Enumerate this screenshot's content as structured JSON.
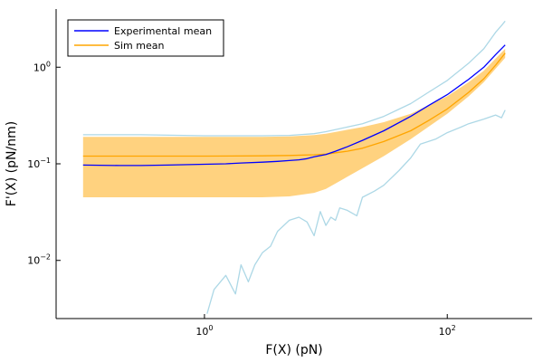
{
  "chart_data": {
    "type": "line",
    "xlabel": "F(X) (pN)",
    "ylabel": "F'(X) (pN/nm)",
    "xscale": "log10",
    "yscale": "log10",
    "xlim": [
      0.06,
      500
    ],
    "ylim": [
      0.0025,
      4.0
    ],
    "grid": false,
    "legend_position": "top-left",
    "x_ticks": [
      {
        "value": 1,
        "base": "10",
        "exp": "0"
      },
      {
        "value": 100,
        "base": "10",
        "exp": "2"
      }
    ],
    "y_ticks": [
      {
        "value": 0.01,
        "base": "10",
        "exp": "−2"
      },
      {
        "value": 0.1,
        "base": "10",
        "exp": "−1"
      },
      {
        "value": 1,
        "base": "10",
        "exp": "0"
      }
    ],
    "band": {
      "color": "#FFA500",
      "opacity": 0.5,
      "x": [
        0.1,
        0.3,
        1,
        3,
        5,
        8,
        10,
        20,
        30,
        50,
        100,
        150,
        200,
        300
      ],
      "upper": [
        0.19,
        0.19,
        0.19,
        0.19,
        0.192,
        0.198,
        0.205,
        0.24,
        0.27,
        0.33,
        0.5,
        0.7,
        0.92,
        1.55
      ],
      "lower": [
        0.045,
        0.045,
        0.045,
        0.045,
        0.046,
        0.05,
        0.055,
        0.09,
        0.12,
        0.18,
        0.33,
        0.5,
        0.7,
        1.25
      ]
    },
    "series": [
      {
        "name": "Experimental mean",
        "color": "#0000FF",
        "x": [
          0.1,
          0.2,
          0.3,
          0.5,
          1,
          1.5,
          2,
          3,
          4,
          5,
          6,
          7,
          8,
          10,
          12,
          15,
          20,
          30,
          50,
          70,
          100,
          150,
          200,
          250,
          300
        ],
        "y": [
          0.097,
          0.096,
          0.096,
          0.097,
          0.099,
          0.1,
          0.102,
          0.104,
          0.106,
          0.108,
          0.11,
          0.113,
          0.118,
          0.125,
          0.135,
          0.15,
          0.175,
          0.22,
          0.31,
          0.4,
          0.52,
          0.75,
          1.0,
          1.35,
          1.7
        ]
      },
      {
        "name": "Sim mean",
        "color": "#FFA500",
        "x": [
          0.1,
          0.3,
          1,
          3,
          5,
          8,
          10,
          15,
          20,
          30,
          50,
          70,
          100,
          150,
          200,
          250,
          300
        ],
        "y": [
          0.12,
          0.12,
          0.12,
          0.121,
          0.122,
          0.124,
          0.126,
          0.135,
          0.145,
          0.17,
          0.22,
          0.28,
          0.37,
          0.55,
          0.76,
          1.05,
          1.4
        ]
      },
      {
        "name": "",
        "role": "experimental-upper-envelope",
        "color": "#ADD8E6",
        "x": [
          0.1,
          0.3,
          1,
          3,
          5,
          8,
          10,
          15,
          20,
          30,
          50,
          70,
          100,
          150,
          200,
          250,
          280,
          300
        ],
        "y": [
          0.2,
          0.2,
          0.195,
          0.195,
          0.197,
          0.205,
          0.215,
          0.24,
          0.26,
          0.31,
          0.42,
          0.55,
          0.73,
          1.1,
          1.55,
          2.3,
          2.7,
          3.0
        ]
      },
      {
        "name": "",
        "role": "experimental-lower-envelope",
        "color": "#ADD8E6",
        "x": [
          1.05,
          1.2,
          1.5,
          1.8,
          2.0,
          2.3,
          2.6,
          3.0,
          3.5,
          4.0,
          5.0,
          6.0,
          7.0,
          8.0,
          9.0,
          10,
          11,
          12,
          13,
          15,
          18,
          20,
          25,
          30,
          40,
          50,
          60,
          80,
          100,
          130,
          150,
          200,
          250,
          280,
          300
        ],
        "y": [
          0.0028,
          0.005,
          0.007,
          0.0045,
          0.009,
          0.006,
          0.009,
          0.012,
          0.014,
          0.02,
          0.026,
          0.028,
          0.025,
          0.018,
          0.032,
          0.023,
          0.028,
          0.026,
          0.035,
          0.033,
          0.029,
          0.045,
          0.052,
          0.06,
          0.085,
          0.115,
          0.16,
          0.18,
          0.21,
          0.24,
          0.26,
          0.29,
          0.32,
          0.3,
          0.36
        ]
      }
    ]
  }
}
